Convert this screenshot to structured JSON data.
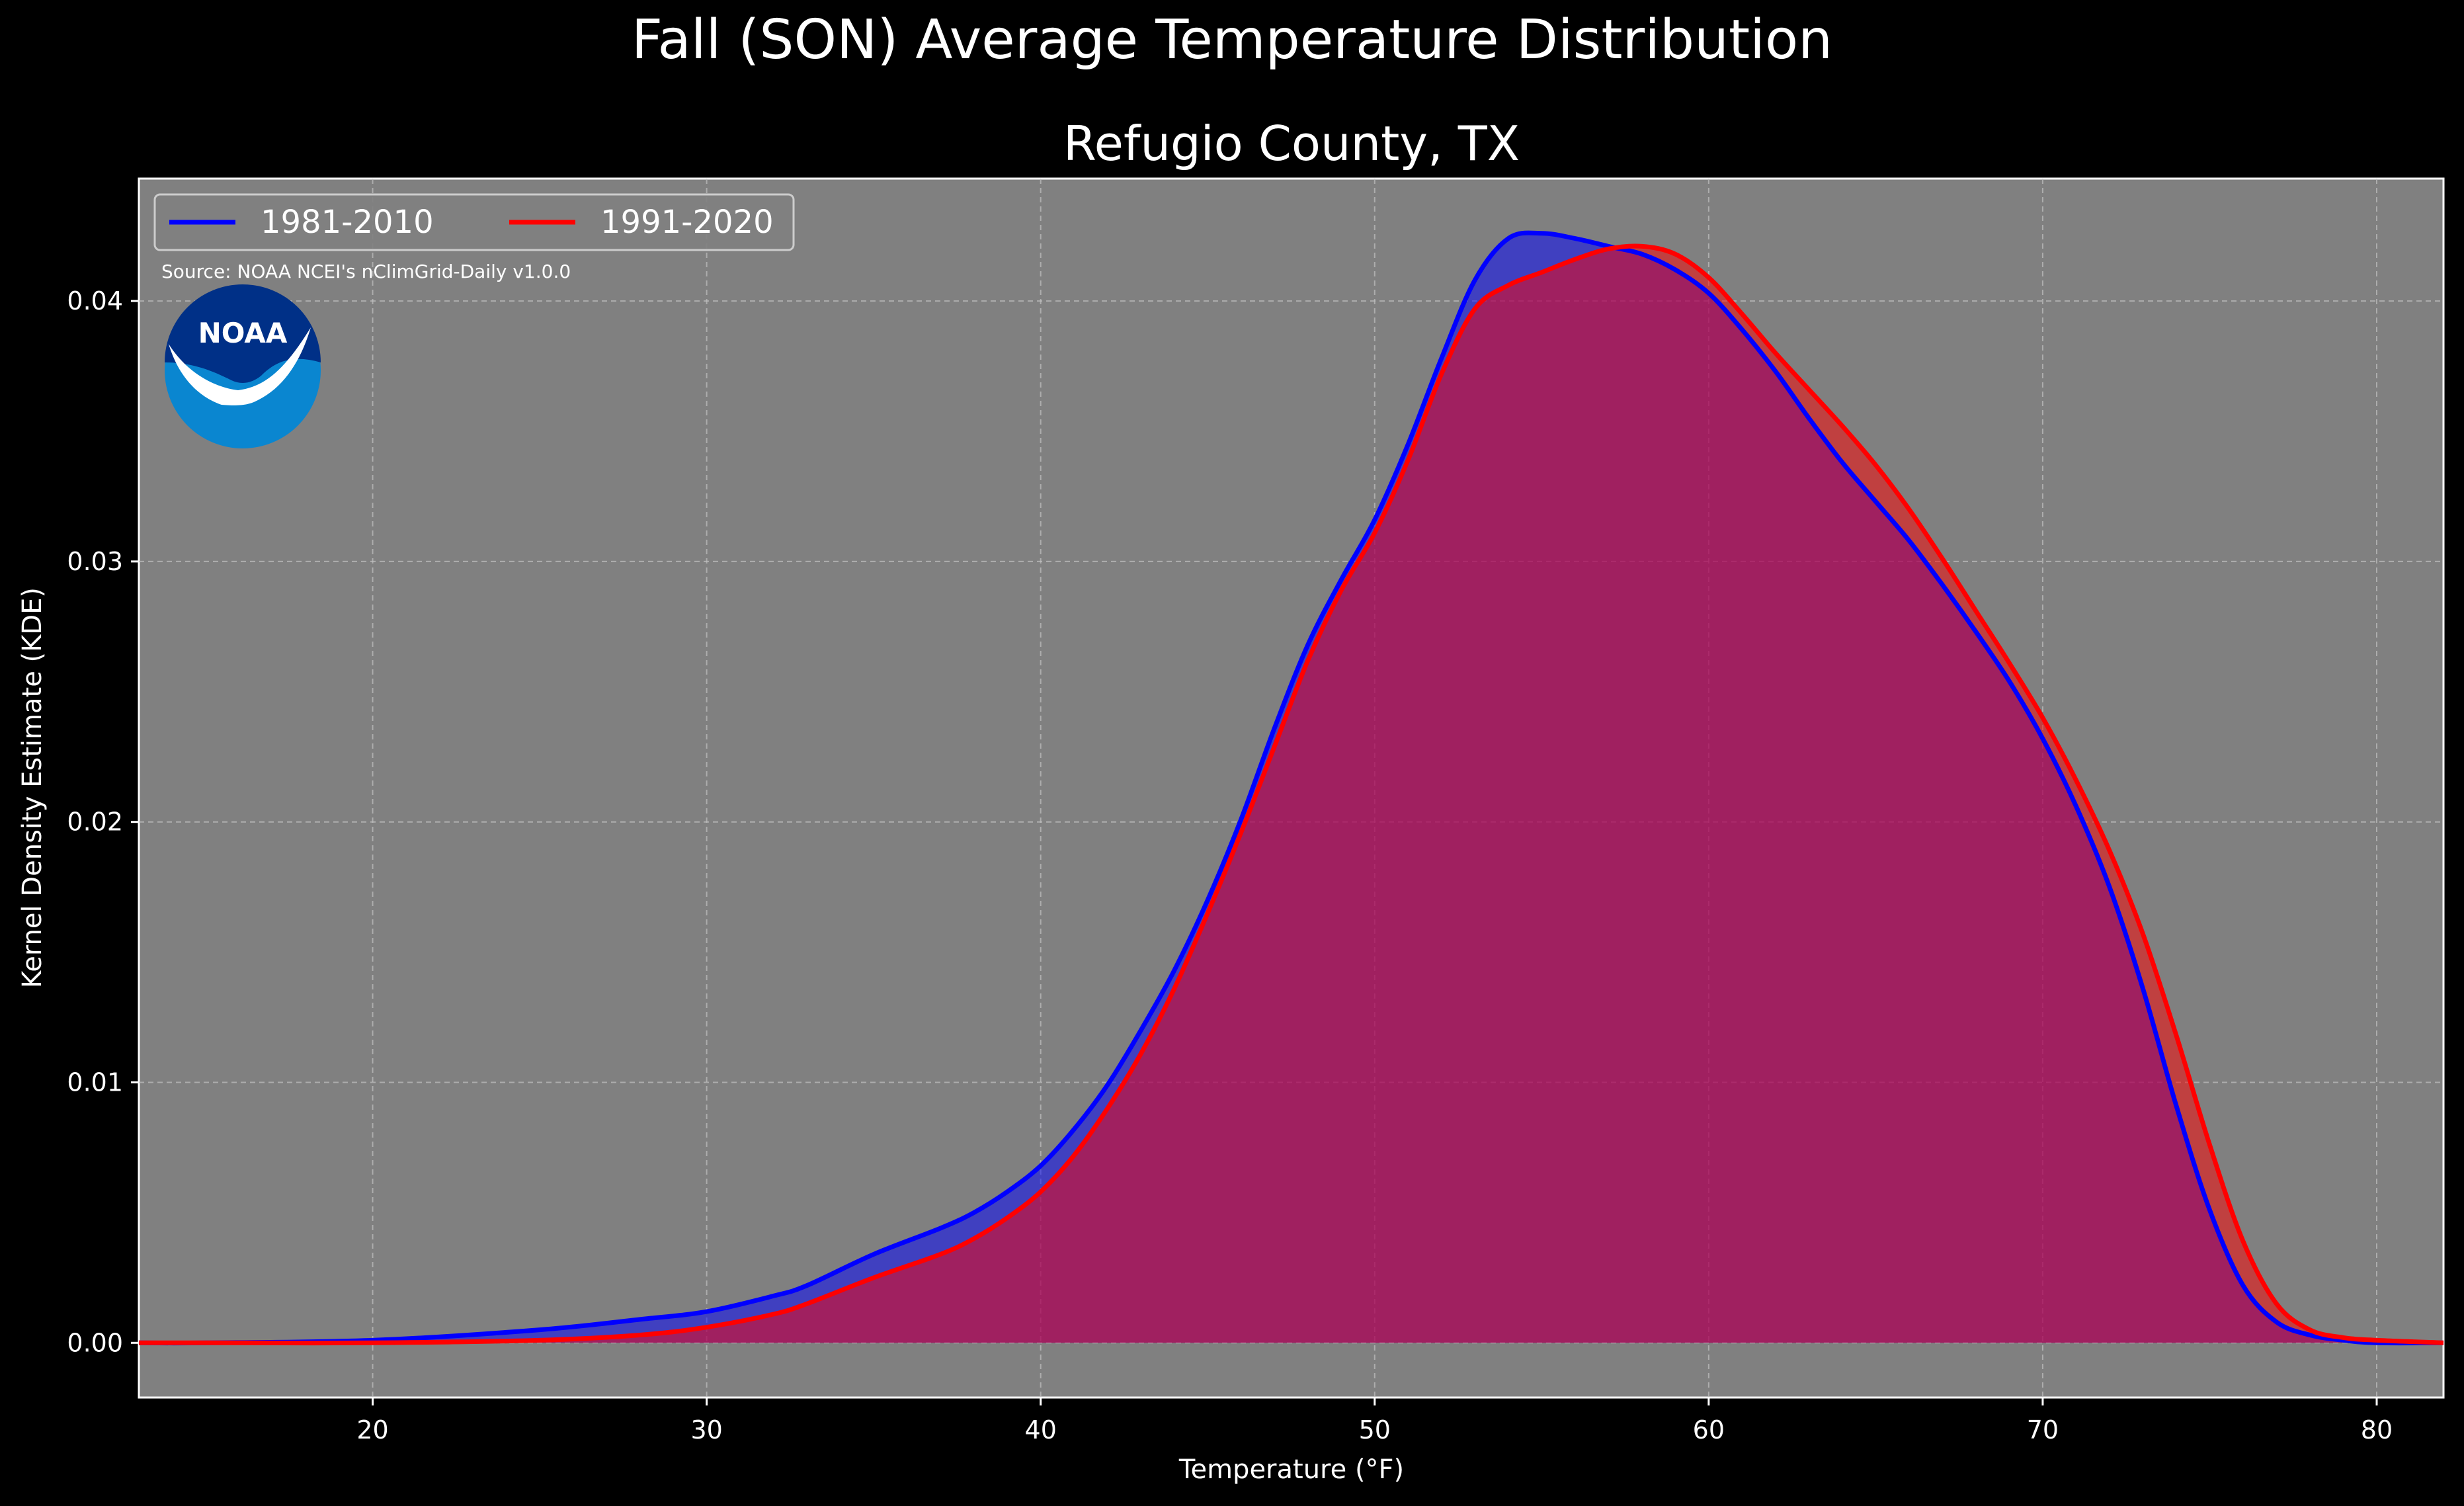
{
  "chart_data": {
    "type": "area",
    "suptitle": "Fall (SON) Average Temperature Distribution",
    "title": "Refugio County, TX",
    "xlabel": "Temperature (°F)",
    "ylabel": "Kernel Density Estimate (KDE)",
    "xlim": [
      13,
      82
    ],
    "ylim": [
      -0.0021,
      0.0447
    ],
    "xticks": [
      20,
      30,
      40,
      50,
      60,
      70,
      80
    ],
    "yticks": [
      0.0,
      0.01,
      0.02,
      0.03,
      0.04
    ],
    "ytick_labels": [
      "0.00",
      "0.01",
      "0.02",
      "0.03",
      "0.04"
    ],
    "grid": true,
    "legend_position": "top-left",
    "source_note": "Source: NOAA NCEI's nClimGrid-Daily v1.0.0",
    "logo": "NOAA",
    "series": [
      {
        "name": "1981-2010",
        "color": "#0000ff",
        "x": [
          13,
          15,
          20,
          25,
          28,
          30,
          32,
          33,
          35,
          37,
          38,
          39,
          40,
          41,
          42,
          43,
          44,
          45,
          46,
          47,
          48,
          49,
          50,
          51,
          52,
          53,
          54,
          55,
          56,
          57,
          58,
          59,
          60,
          61,
          62,
          63,
          64,
          65,
          66,
          67,
          68,
          69,
          70,
          71,
          72,
          73,
          74,
          75,
          76,
          77,
          78,
          79,
          80,
          82
        ],
        "values": [
          0.0,
          0.0,
          0.0001,
          0.0005,
          0.0009,
          0.0012,
          0.0018,
          0.0022,
          0.0034,
          0.0044,
          0.005,
          0.0058,
          0.0068,
          0.0082,
          0.0099,
          0.012,
          0.0143,
          0.017,
          0.0201,
          0.0236,
          0.0268,
          0.0293,
          0.0316,
          0.0345,
          0.0378,
          0.0408,
          0.0424,
          0.0426,
          0.0424,
          0.0421,
          0.0418,
          0.0412,
          0.0403,
          0.0389,
          0.0373,
          0.0355,
          0.0338,
          0.0323,
          0.0308,
          0.0291,
          0.0273,
          0.0254,
          0.0232,
          0.0206,
          0.0175,
          0.0136,
          0.0091,
          0.0051,
          0.0022,
          0.0008,
          0.0003,
          0.0001,
          0.0,
          0.0
        ]
      },
      {
        "name": "1991-2020",
        "color": "#ff0000",
        "x": [
          13,
          15,
          20,
          25,
          28,
          30,
          32,
          33,
          35,
          37,
          38,
          39,
          40,
          41,
          42,
          43,
          44,
          45,
          46,
          47,
          48,
          49,
          50,
          51,
          52,
          53,
          54,
          55,
          56,
          57,
          58,
          59,
          60,
          61,
          62,
          63,
          64,
          65,
          66,
          67,
          68,
          69,
          70,
          71,
          72,
          73,
          74,
          75,
          76,
          77,
          78,
          79,
          80,
          82
        ],
        "values": [
          0.0,
          0.0,
          0.0,
          0.0001,
          0.0003,
          0.0006,
          0.0011,
          0.0015,
          0.0025,
          0.0034,
          0.004,
          0.0048,
          0.0058,
          0.0072,
          0.009,
          0.0111,
          0.0136,
          0.0165,
          0.0196,
          0.0229,
          0.0262,
          0.0289,
          0.0311,
          0.0339,
          0.0372,
          0.0397,
          0.0406,
          0.0411,
          0.0416,
          0.042,
          0.0421,
          0.0418,
          0.0409,
          0.0395,
          0.038,
          0.0366,
          0.0352,
          0.0337,
          0.032,
          0.0301,
          0.0281,
          0.0261,
          0.024,
          0.0216,
          0.0189,
          0.0157,
          0.0118,
          0.0076,
          0.0039,
          0.0015,
          0.0005,
          0.0002,
          0.0001,
          0.0
        ]
      }
    ]
  }
}
